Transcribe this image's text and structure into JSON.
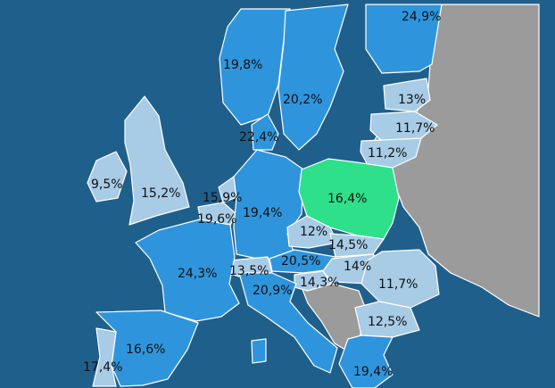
{
  "colors": {
    "sea": "#1f5f8b",
    "dark": "#2e95dd",
    "light": "#a8cbe6",
    "highlight": "#2ee08a",
    "nodata": "#9b9b9b",
    "border": "#ffffff",
    "text": "#111111"
  },
  "countries": [
    {
      "id": "norway",
      "value": "19,8%",
      "shade": "dark"
    },
    {
      "id": "sweden",
      "value": "20,2%",
      "shade": "dark"
    },
    {
      "id": "finland",
      "value": "24,9%",
      "shade": "dark"
    },
    {
      "id": "estonia",
      "value": "13%",
      "shade": "light"
    },
    {
      "id": "latvia",
      "value": "11,7%",
      "shade": "light"
    },
    {
      "id": "lithuania",
      "value": "11,2%",
      "shade": "light"
    },
    {
      "id": "denmark",
      "value": "22,4%",
      "shade": "dark"
    },
    {
      "id": "ireland",
      "value": "9,5%",
      "shade": "light"
    },
    {
      "id": "united-kingdom",
      "value": "15,2%",
      "shade": "light"
    },
    {
      "id": "netherlands",
      "value": "15,9%",
      "shade": "light"
    },
    {
      "id": "belgium",
      "value": "19,6%",
      "shade": "light"
    },
    {
      "id": "germany",
      "value": "19,4%",
      "shade": "dark"
    },
    {
      "id": "poland",
      "value": "16,4%",
      "shade": "highlight"
    },
    {
      "id": "czechia",
      "value": "12%",
      "shade": "light"
    },
    {
      "id": "slovakia",
      "value": "14,5%",
      "shade": "light"
    },
    {
      "id": "austria",
      "value": "20,5%",
      "shade": "dark"
    },
    {
      "id": "hungary",
      "value": "14%",
      "shade": "light"
    },
    {
      "id": "slovenia",
      "value": "14,3%",
      "shade": "light"
    },
    {
      "id": "romania",
      "value": "11,7%",
      "shade": "light"
    },
    {
      "id": "bulgaria",
      "value": "12,5%",
      "shade": "light"
    },
    {
      "id": "switzerland",
      "value": "13,5%",
      "shade": "light"
    },
    {
      "id": "france",
      "value": "24,3%",
      "shade": "dark"
    },
    {
      "id": "italy",
      "value": "20,9%",
      "shade": "dark"
    },
    {
      "id": "spain",
      "value": "16,6%",
      "shade": "dark"
    },
    {
      "id": "portugal",
      "value": "17,4%",
      "shade": "light"
    },
    {
      "id": "greece",
      "value": "19,4%",
      "shade": "dark"
    }
  ]
}
